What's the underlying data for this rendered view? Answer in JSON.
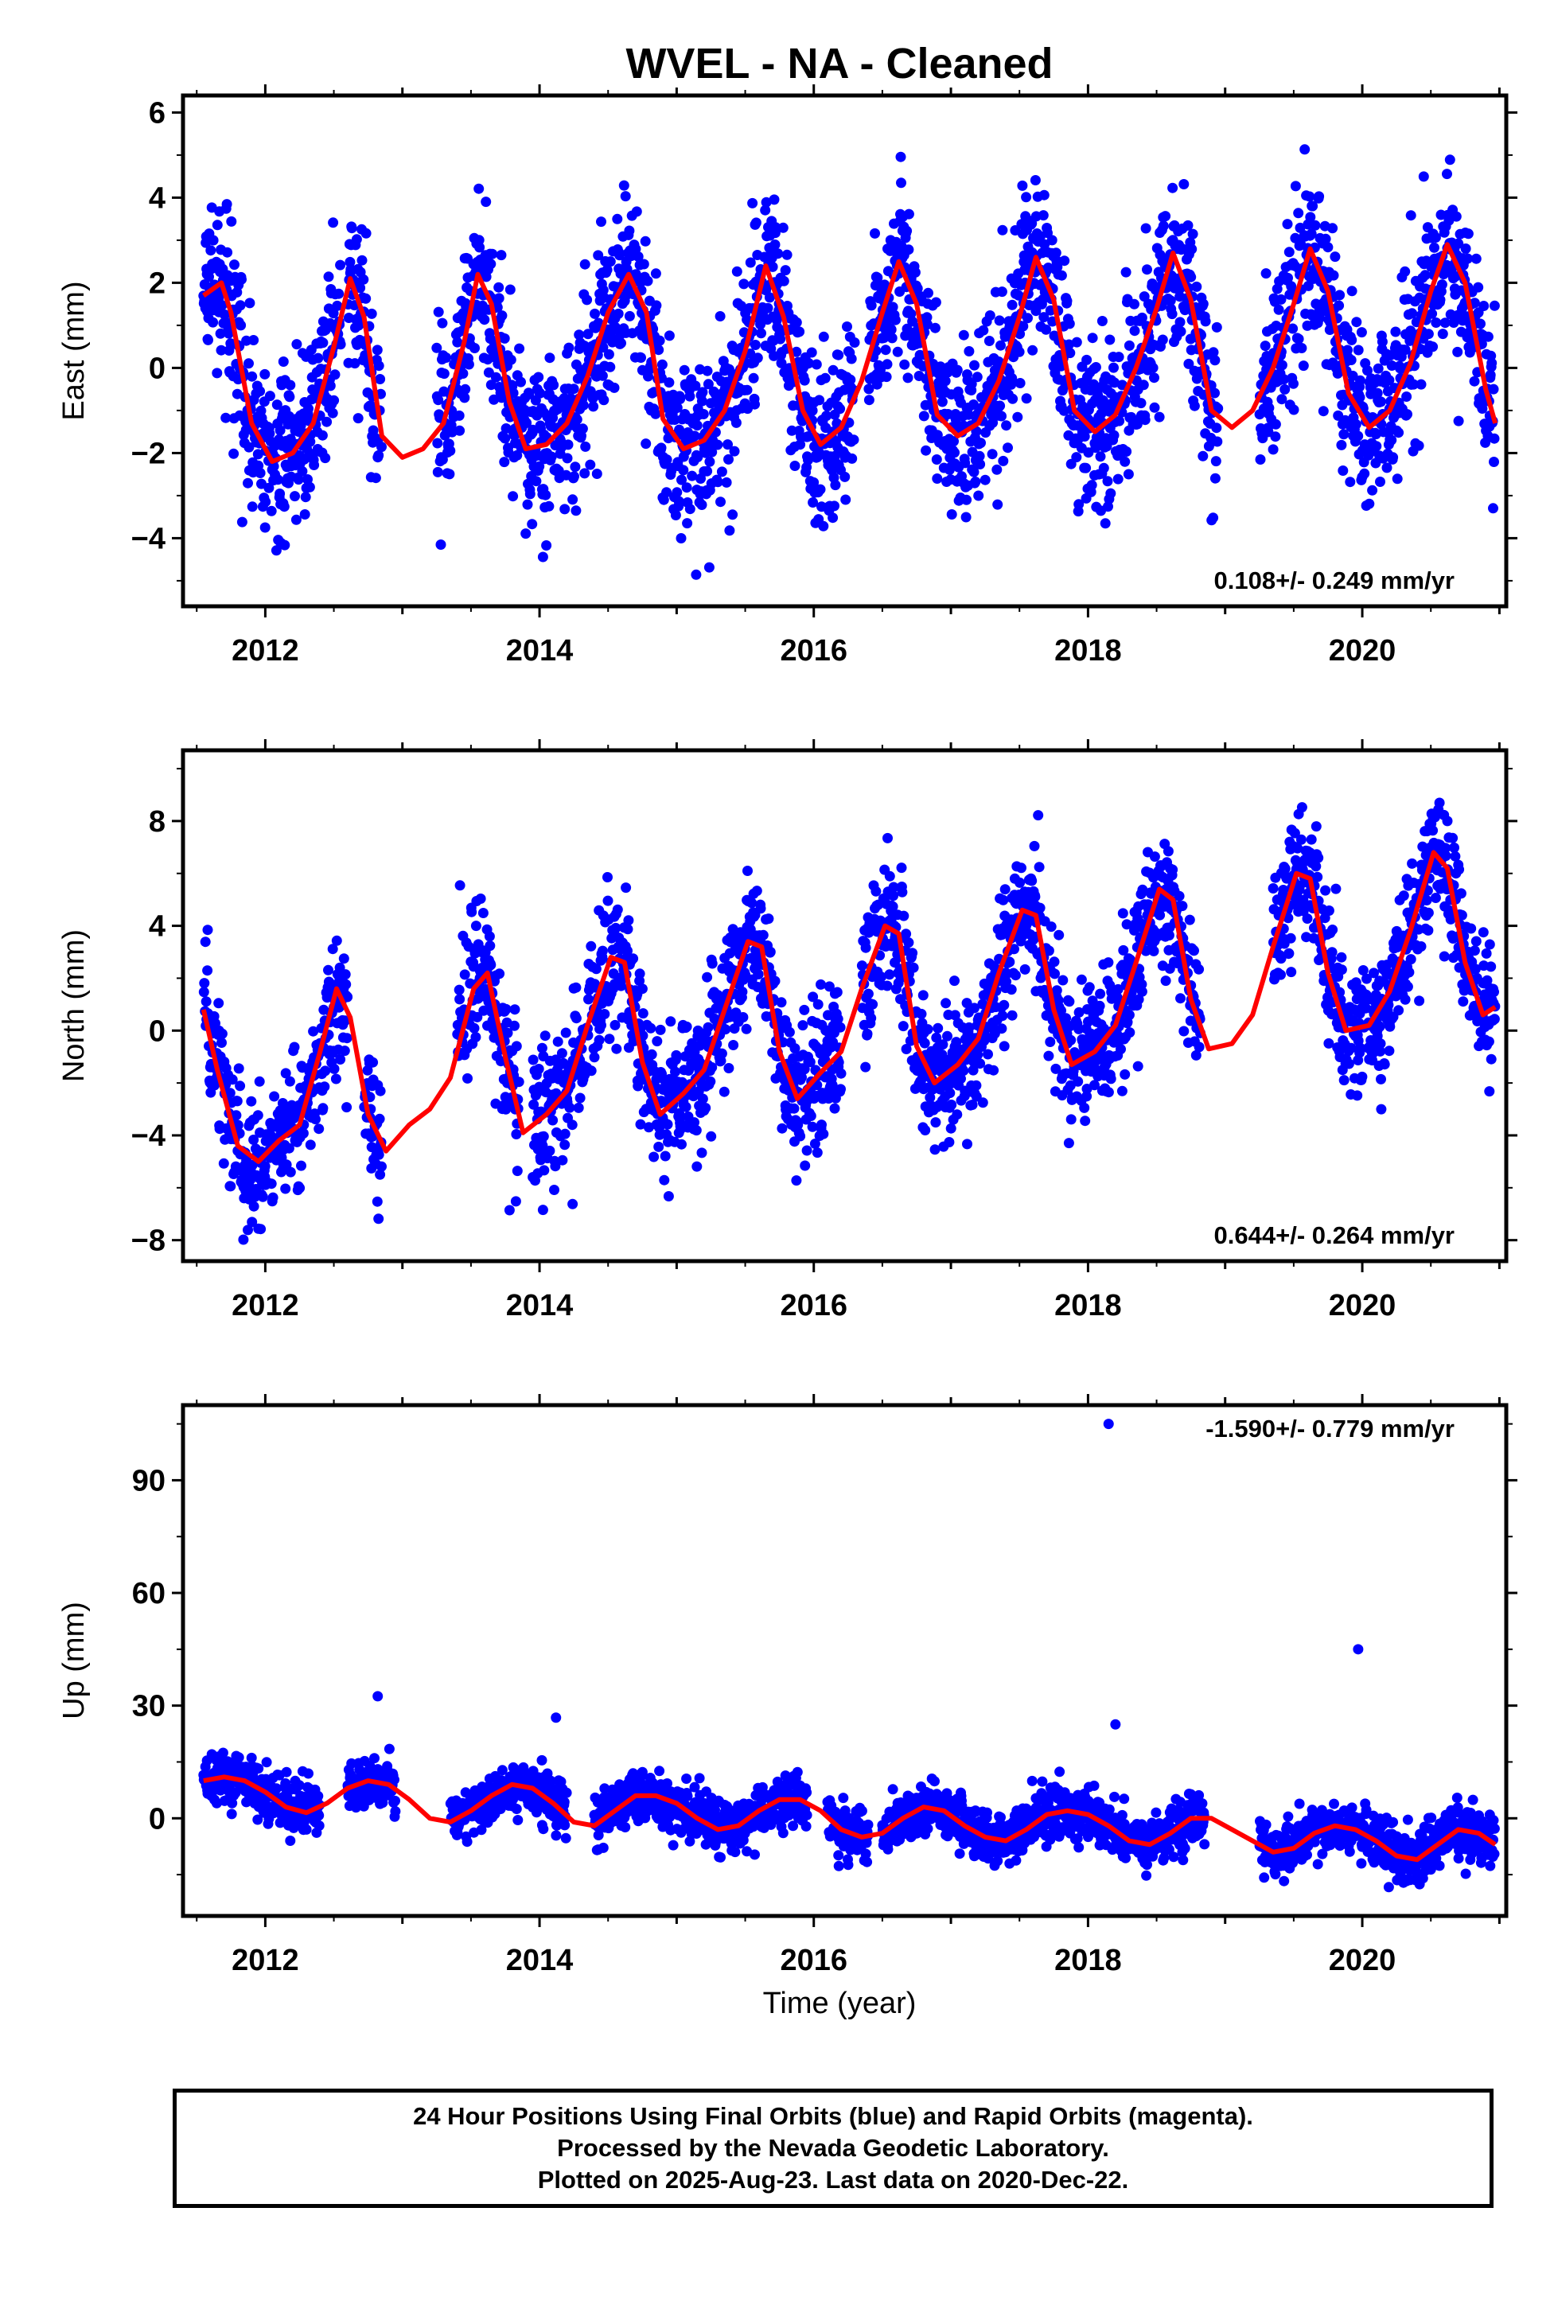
{
  "title": "WVEL  - NA - Cleaned",
  "xlabel": "Time (year)",
  "colors": {
    "points": "#0000ff",
    "model": "#ff0000",
    "frame": "#000000"
  },
  "chart_data": [
    {
      "type": "scatter",
      "name": "east",
      "ylabel": "East (mm)",
      "xlim": [
        2011.4,
        2021.05
      ],
      "ylim": [
        -5.6,
        6.4
      ],
      "yticks": [
        -4,
        -2,
        0,
        2,
        4,
        6
      ],
      "xticks": [
        2012,
        2014,
        2016,
        2018,
        2020
      ],
      "rate_label": "0.108+/- 0.249 mm/yr",
      "rate": 0.108,
      "seasonal_amplitude": 2.1,
      "noise": 1.0,
      "x_range": [
        2011.55,
        2020.97
      ],
      "gaps": [
        [
          2012.55,
          2012.6
        ],
        [
          2012.85,
          2013.25
        ],
        [
          2016.3,
          2016.4
        ],
        [
          2018.95,
          2019.25
        ]
      ],
      "model": {
        "x": [
          2011.55,
          2011.68,
          2011.75,
          2011.9,
          2012.05,
          2012.2,
          2012.35,
          2012.5,
          2012.62,
          2012.72,
          2012.85,
          2013.0,
          2013.15,
          2013.3,
          2013.45,
          2013.55,
          2013.65,
          2013.78,
          2013.9,
          2014.05,
          2014.2,
          2014.35,
          2014.5,
          2014.65,
          2014.78,
          2014.9,
          2015.05,
          2015.2,
          2015.35,
          2015.5,
          2015.65,
          2015.78,
          2015.92,
          2016.05,
          2016.2,
          2016.35,
          2016.5,
          2016.62,
          2016.75,
          2016.9,
          2017.05,
          2017.2,
          2017.35,
          2017.5,
          2017.62,
          2017.75,
          2017.9,
          2018.05,
          2018.2,
          2018.35,
          2018.5,
          2018.62,
          2018.75,
          2018.9,
          2019.05,
          2019.2,
          2019.35,
          2019.5,
          2019.62,
          2019.75,
          2019.9,
          2020.05,
          2020.2,
          2020.35,
          2020.5,
          2020.62,
          2020.75,
          2020.9,
          2020.97
        ],
        "y": [
          1.7,
          2.0,
          1.3,
          -1.3,
          -2.2,
          -2.0,
          -1.3,
          0.5,
          2.1,
          1.2,
          -1.6,
          -2.1,
          -1.9,
          -1.3,
          0.6,
          2.2,
          1.5,
          -0.8,
          -1.9,
          -1.8,
          -1.3,
          -0.2,
          1.3,
          2.2,
          1.3,
          -1.2,
          -1.9,
          -1.7,
          -1.0,
          0.4,
          2.4,
          1.2,
          -1.0,
          -1.8,
          -1.4,
          -0.3,
          1.3,
          2.5,
          1.5,
          -1.1,
          -1.6,
          -1.3,
          -0.3,
          1.2,
          2.6,
          1.6,
          -1.0,
          -1.5,
          -1.1,
          0.0,
          1.4,
          2.7,
          1.6,
          -1.0,
          -1.4,
          -1.0,
          0.0,
          1.5,
          2.8,
          1.8,
          -0.6,
          -1.4,
          -1.0,
          0.1,
          1.8,
          2.9,
          2.0,
          -0.5,
          -1.3
        ]
      }
    },
    {
      "type": "scatter",
      "name": "north",
      "ylabel": "North (mm)",
      "xlim": [
        2011.4,
        2021.05
      ],
      "ylim": [
        -8.8,
        10.7
      ],
      "yticks": [
        -8,
        -4,
        0,
        4,
        8
      ],
      "xticks": [
        2012,
        2014,
        2016,
        2018,
        2020
      ],
      "rate_label": "0.644+/- 0.264 mm/yr",
      "rate": 0.644,
      "seasonal_amplitude": 3.2,
      "noise": 1.3,
      "x_range": [
        2011.55,
        2020.97
      ],
      "gaps": [
        [
          2012.6,
          2012.72
        ],
        [
          2012.85,
          2013.4
        ],
        [
          2013.85,
          2013.95
        ],
        [
          2016.2,
          2016.35
        ],
        [
          2018.82,
          2019.35
        ]
      ],
      "model": {
        "x": [
          2011.55,
          2011.65,
          2011.8,
          2011.95,
          2012.1,
          2012.25,
          2012.4,
          2012.52,
          2012.62,
          2012.75,
          2012.88,
          2013.05,
          2013.2,
          2013.35,
          2013.52,
          2013.62,
          2013.75,
          2013.88,
          2014.05,
          2014.2,
          2014.35,
          2014.52,
          2014.62,
          2014.75,
          2014.88,
          2015.05,
          2015.2,
          2015.35,
          2015.52,
          2015.62,
          2015.75,
          2015.88,
          2016.05,
          2016.2,
          2016.35,
          2016.52,
          2016.62,
          2016.75,
          2016.88,
          2017.05,
          2017.2,
          2017.35,
          2017.52,
          2017.62,
          2017.75,
          2017.88,
          2018.05,
          2018.2,
          2018.35,
          2018.52,
          2018.62,
          2018.75,
          2018.88,
          2019.05,
          2019.2,
          2019.35,
          2019.52,
          2019.62,
          2019.75,
          2019.88,
          2020.05,
          2020.2,
          2020.35,
          2020.52,
          2020.62,
          2020.75,
          2020.88,
          2020.97
        ],
        "y": [
          0.8,
          -1.5,
          -4.4,
          -5.0,
          -4.2,
          -3.6,
          -0.8,
          1.6,
          0.5,
          -3.2,
          -4.6,
          -3.6,
          -3.0,
          -1.8,
          1.6,
          2.2,
          -1.0,
          -3.9,
          -3.2,
          -2.3,
          0.2,
          2.8,
          2.6,
          -1.2,
          -3.2,
          -2.4,
          -1.5,
          0.8,
          3.4,
          3.2,
          -0.8,
          -2.6,
          -1.6,
          -0.8,
          1.6,
          4.0,
          3.7,
          -0.6,
          -2.0,
          -1.3,
          -0.3,
          2.2,
          4.6,
          4.4,
          0.8,
          -1.3,
          -0.8,
          0.2,
          2.6,
          5.4,
          5.0,
          1.2,
          -0.7,
          -0.5,
          0.6,
          3.2,
          6.0,
          5.8,
          2.2,
          0.0,
          0.2,
          1.5,
          3.8,
          6.8,
          6.2,
          2.6,
          0.6,
          0.9
        ]
      }
    },
    {
      "type": "scatter",
      "name": "up",
      "ylabel": "Up (mm)",
      "xlim": [
        2011.4,
        2021.05
      ],
      "ylim": [
        -26,
        110
      ],
      "yticks": [
        0,
        30,
        60,
        90
      ],
      "xticks": [
        2012,
        2014,
        2016,
        2018,
        2020
      ],
      "rate_label": "-1.590+/- 0.779 mm/yr",
      "rate": -1.59,
      "seasonal_amplitude": 5,
      "noise": 3.5,
      "x_range": [
        2011.55,
        2020.97
      ],
      "gaps": [
        [
          2012.4,
          2012.6
        ],
        [
          2012.95,
          2013.35
        ],
        [
          2014.2,
          2014.4
        ],
        [
          2015.95,
          2016.1
        ],
        [
          2016.4,
          2016.5
        ],
        [
          2018.85,
          2019.25
        ]
      ],
      "outliers": [
        [
          2012.82,
          32.5
        ],
        [
          2014.12,
          26.8
        ],
        [
          2018.15,
          105
        ],
        [
          2018.2,
          25
        ],
        [
          2019.97,
          45
        ]
      ],
      "model": {
        "x": [
          2011.55,
          2011.7,
          2011.85,
          2012.0,
          2012.15,
          2012.3,
          2012.45,
          2012.6,
          2012.75,
          2012.9,
          2013.05,
          2013.2,
          2013.35,
          2013.5,
          2013.65,
          2013.8,
          2013.95,
          2014.1,
          2014.25,
          2014.4,
          2014.55,
          2014.7,
          2014.85,
          2015.0,
          2015.15,
          2015.3,
          2015.45,
          2015.6,
          2015.75,
          2015.9,
          2016.05,
          2016.2,
          2016.35,
          2016.5,
          2016.65,
          2016.8,
          2016.95,
          2017.1,
          2017.25,
          2017.4,
          2017.55,
          2017.7,
          2017.85,
          2018.0,
          2018.15,
          2018.3,
          2018.45,
          2018.6,
          2018.75,
          2018.9,
          2019.05,
          2019.2,
          2019.35,
          2019.5,
          2019.65,
          2019.8,
          2019.95,
          2020.1,
          2020.25,
          2020.4,
          2020.55,
          2020.7,
          2020.85,
          2020.97
        ],
        "y": [
          10,
          11,
          10,
          7,
          3,
          1.5,
          4,
          8,
          10,
          9,
          5,
          0,
          -1,
          2,
          6,
          9,
          8,
          4,
          -1,
          -2,
          2,
          6,
          6,
          4,
          0,
          -3,
          -2,
          2,
          5,
          5,
          2,
          -3,
          -5,
          -4,
          0,
          3,
          2,
          -2,
          -5,
          -6,
          -3,
          1,
          2,
          1,
          -2,
          -6,
          -7,
          -4,
          0,
          0,
          -3,
          -6,
          -9,
          -8,
          -4,
          -2,
          -3,
          -6,
          -10,
          -11,
          -7,
          -3,
          -4,
          -7
        ]
      }
    }
  ],
  "footer": {
    "line1": "24 Hour Positions Using Final Orbits (blue) and Rapid Orbits (magenta).",
    "line2": "Processed by the Nevada Geodetic Laboratory.",
    "line3": "Plotted on 2025-Aug-23. Last data on 2020-Dec-22."
  }
}
